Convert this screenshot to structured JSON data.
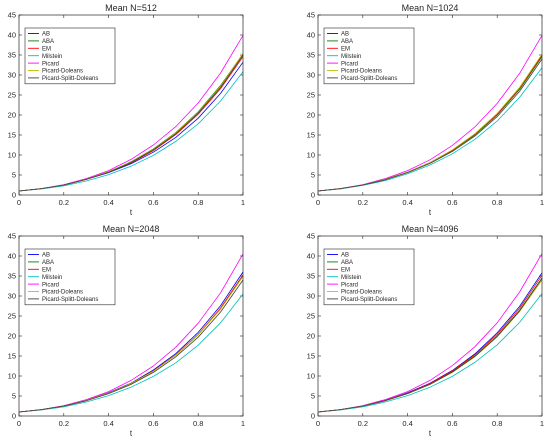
{
  "chart_data": [
    {
      "type": "line",
      "title": "Mean N=512",
      "xlabel": "t",
      "ylabel": "",
      "xlim": [
        0,
        1
      ],
      "ylim": [
        0,
        45
      ],
      "xticks": [
        0,
        0.2,
        0.4,
        0.6,
        0.8,
        1
      ],
      "xtick_labels": [
        "0",
        "0.2",
        "0.4",
        "0.6",
        "0.8",
        "1"
      ],
      "yticks": [
        0,
        5,
        10,
        15,
        20,
        25,
        30,
        35,
        40,
        45
      ],
      "ytick_labels": [
        "0",
        "5",
        "10",
        "15",
        "20",
        "25",
        "30",
        "35",
        "40",
        "45"
      ],
      "grid": false,
      "legend": "top-left",
      "x": [
        0,
        0.1,
        0.2,
        0.3,
        0.4,
        0.5,
        0.6,
        0.7,
        0.8,
        0.9,
        1
      ],
      "series": [
        {
          "name": "AB",
          "color": "#0000ff",
          "values": [
            1,
            1.6,
            2.5,
            3.9,
            5.6,
            7.8,
            10.7,
            14.4,
            19.2,
            25.4,
            33.2
          ]
        },
        {
          "name": "ABA",
          "color": "#008000",
          "values": [
            1,
            1.6,
            2.5,
            3.9,
            5.8,
            8.3,
            11.5,
            15.6,
            20.8,
            27.4,
            35.3
          ]
        },
        {
          "name": "EM",
          "color": "#ff0000",
          "values": [
            1,
            1.6,
            2.5,
            3.9,
            5.7,
            8.0,
            11.1,
            15.1,
            20.2,
            26.6,
            34.6
          ]
        },
        {
          "name": "Milstein",
          "color": "#00bfbf",
          "values": [
            1,
            1.5,
            2.3,
            3.5,
            5.1,
            7.2,
            9.9,
            13.4,
            17.8,
            23.5,
            30.8
          ]
        },
        {
          "name": "Picard",
          "color": "#ff00ff",
          "values": [
            1,
            1.6,
            2.6,
            4.1,
            6.1,
            8.9,
            12.5,
            17.1,
            23.0,
            30.5,
            39.9
          ]
        },
        {
          "name": "Picard-Doleans",
          "color": "#bfbf00",
          "values": [
            1,
            1.6,
            2.5,
            3.9,
            5.8,
            8.2,
            11.4,
            15.5,
            20.7,
            27.2,
            35.4
          ]
        },
        {
          "name": "Picard-Splitt-Doleans",
          "color": "#404040",
          "values": [
            1,
            1.6,
            2.5,
            3.9,
            5.7,
            8.1,
            11.3,
            15.3,
            20.5,
            26.9,
            35.0
          ]
        }
      ]
    },
    {
      "type": "line",
      "title": "Mean N=1024",
      "xlabel": "t",
      "ylabel": "",
      "xlim": [
        0,
        1
      ],
      "ylim": [
        0,
        45
      ],
      "xticks": [
        0,
        0.2,
        0.4,
        0.6,
        0.8,
        1
      ],
      "xtick_labels": [
        "0",
        "0.2",
        "0.4",
        "0.6",
        "0.8",
        "1"
      ],
      "yticks": [
        0,
        5,
        10,
        15,
        20,
        25,
        30,
        35,
        40,
        45
      ],
      "ytick_labels": [
        "0",
        "5",
        "10",
        "15",
        "20",
        "25",
        "30",
        "35",
        "40",
        "45"
      ],
      "grid": false,
      "legend": "top-left",
      "x": [
        0,
        0.1,
        0.2,
        0.3,
        0.4,
        0.5,
        0.6,
        0.7,
        0.8,
        0.9,
        1
      ],
      "series": [
        {
          "name": "AB",
          "color": "#0000ff",
          "values": [
            1,
            1.6,
            2.5,
            3.9,
            5.7,
            8.1,
            11.2,
            15.2,
            20.3,
            26.8,
            35.0
          ]
        },
        {
          "name": "ABA",
          "color": "#008000",
          "values": [
            1,
            1.6,
            2.5,
            3.9,
            5.7,
            8.0,
            11.1,
            15.0,
            20.0,
            26.4,
            34.6
          ]
        },
        {
          "name": "EM",
          "color": "#ff0000",
          "values": [
            1,
            1.6,
            2.5,
            3.9,
            5.7,
            8.1,
            11.2,
            15.2,
            20.2,
            26.7,
            34.9
          ]
        },
        {
          "name": "Milstein",
          "color": "#00bfbf",
          "values": [
            1,
            1.5,
            2.4,
            3.6,
            5.3,
            7.5,
            10.3,
            13.9,
            18.5,
            24.4,
            31.8
          ]
        },
        {
          "name": "Picard",
          "color": "#ff00ff",
          "values": [
            1,
            1.6,
            2.6,
            4.1,
            6.1,
            8.8,
            12.4,
            17.0,
            22.9,
            30.4,
            39.9
          ]
        },
        {
          "name": "Picard-Doleans",
          "color": "#bfbf00",
          "values": [
            1,
            1.6,
            2.5,
            3.9,
            5.7,
            8.1,
            11.3,
            15.3,
            20.4,
            26.9,
            35.2
          ]
        },
        {
          "name": "Picard-Splitt-Doleans",
          "color": "#404040",
          "values": [
            1,
            1.6,
            2.5,
            3.8,
            5.6,
            7.9,
            10.9,
            14.7,
            19.6,
            25.9,
            34.0
          ]
        }
      ]
    },
    {
      "type": "line",
      "title": "Mean N=2048",
      "xlabel": "t",
      "ylabel": "",
      "xlim": [
        0,
        1
      ],
      "ylim": [
        0,
        45
      ],
      "xticks": [
        0,
        0.2,
        0.4,
        0.6,
        0.8,
        1
      ],
      "xtick_labels": [
        "0",
        "0.2",
        "0.4",
        "0.6",
        "0.8",
        "1"
      ],
      "yticks": [
        0,
        5,
        10,
        15,
        20,
        25,
        30,
        35,
        40,
        45
      ],
      "ytick_labels": [
        "0",
        "5",
        "10",
        "15",
        "20",
        "25",
        "30",
        "35",
        "40",
        "45"
      ],
      "grid": false,
      "legend": "top-left",
      "x": [
        0,
        0.1,
        0.2,
        0.3,
        0.4,
        0.5,
        0.6,
        0.7,
        0.8,
        0.9,
        1
      ],
      "series": [
        {
          "name": "AB",
          "color": "#0000ff",
          "values": [
            1,
            1.6,
            2.5,
            3.9,
            5.8,
            8.2,
            11.5,
            15.6,
            20.9,
            27.6,
            36.0
          ]
        },
        {
          "name": "ABA",
          "color": "#008000",
          "values": [
            1,
            1.6,
            2.5,
            3.9,
            5.7,
            8.1,
            11.2,
            15.2,
            20.3,
            26.8,
            35.0
          ]
        },
        {
          "name": "EM",
          "color": "#ff0000",
          "values": [
            1,
            1.6,
            2.5,
            3.9,
            5.7,
            8.1,
            11.3,
            15.3,
            20.4,
            27.0,
            35.3
          ]
        },
        {
          "name": "Milstein",
          "color": "#00bfbf",
          "values": [
            1,
            1.5,
            2.3,
            3.5,
            5.1,
            7.2,
            9.9,
            13.3,
            17.7,
            23.3,
            30.5
          ]
        },
        {
          "name": "Picard",
          "color": "#ff00ff",
          "values": [
            1,
            1.6,
            2.6,
            4.1,
            6.1,
            8.9,
            12.5,
            17.2,
            23.2,
            30.8,
            40.5
          ]
        },
        {
          "name": "Picard-Doleans",
          "color": "#bfbf00",
          "values": [
            1,
            1.6,
            2.5,
            3.9,
            5.7,
            8.1,
            11.2,
            15.2,
            20.3,
            26.7,
            34.9
          ]
        },
        {
          "name": "Picard-Splitt-Doleans",
          "color": "#404040",
          "values": [
            1,
            1.6,
            2.5,
            3.8,
            5.6,
            7.9,
            10.9,
            14.8,
            19.7,
            26.0,
            34.0
          ]
        }
      ]
    },
    {
      "type": "line",
      "title": "Mean N=4096",
      "xlabel": "t",
      "ylabel": "",
      "xlim": [
        0,
        1
      ],
      "ylim": [
        0,
        45
      ],
      "xticks": [
        0,
        0.2,
        0.4,
        0.6,
        0.8,
        1
      ],
      "xtick_labels": [
        "0",
        "0.2",
        "0.4",
        "0.6",
        "0.8",
        "1"
      ],
      "yticks": [
        0,
        5,
        10,
        15,
        20,
        25,
        30,
        35,
        40,
        45
      ],
      "ytick_labels": [
        "0",
        "5",
        "10",
        "15",
        "20",
        "25",
        "30",
        "35",
        "40",
        "45"
      ],
      "grid": false,
      "legend": "top-left",
      "x": [
        0,
        0.1,
        0.2,
        0.3,
        0.4,
        0.5,
        0.6,
        0.7,
        0.8,
        0.9,
        1
      ],
      "series": [
        {
          "name": "AB",
          "color": "#0000ff",
          "values": [
            1,
            1.6,
            2.5,
            3.9,
            5.8,
            8.2,
            11.4,
            15.5,
            20.8,
            27.4,
            35.8
          ]
        },
        {
          "name": "ABA",
          "color": "#008000",
          "values": [
            1,
            1.6,
            2.5,
            3.9,
            5.7,
            8.0,
            11.1,
            15.0,
            20.0,
            26.4,
            34.5
          ]
        },
        {
          "name": "EM",
          "color": "#ff0000",
          "values": [
            1,
            1.6,
            2.5,
            3.9,
            5.7,
            8.1,
            11.3,
            15.3,
            20.4,
            26.9,
            35.2
          ]
        },
        {
          "name": "Milstein",
          "color": "#00bfbf",
          "values": [
            1,
            1.5,
            2.3,
            3.5,
            5.1,
            7.2,
            9.9,
            13.4,
            17.8,
            23.4,
            30.6
          ]
        },
        {
          "name": "Picard",
          "color": "#ff00ff",
          "values": [
            1,
            1.6,
            2.6,
            4.1,
            6.1,
            8.9,
            12.6,
            17.3,
            23.3,
            31.0,
            40.6
          ]
        },
        {
          "name": "Picard-Doleans",
          "color": "#bfbf00",
          "values": [
            1,
            1.6,
            2.5,
            3.8,
            5.6,
            7.9,
            10.9,
            14.8,
            19.8,
            26.1,
            34.0
          ]
        },
        {
          "name": "Picard-Splitt-Doleans",
          "color": "#404040",
          "values": [
            1,
            1.6,
            2.5,
            3.8,
            5.6,
            7.9,
            11.0,
            14.9,
            19.9,
            26.3,
            34.4
          ]
        }
      ]
    }
  ]
}
